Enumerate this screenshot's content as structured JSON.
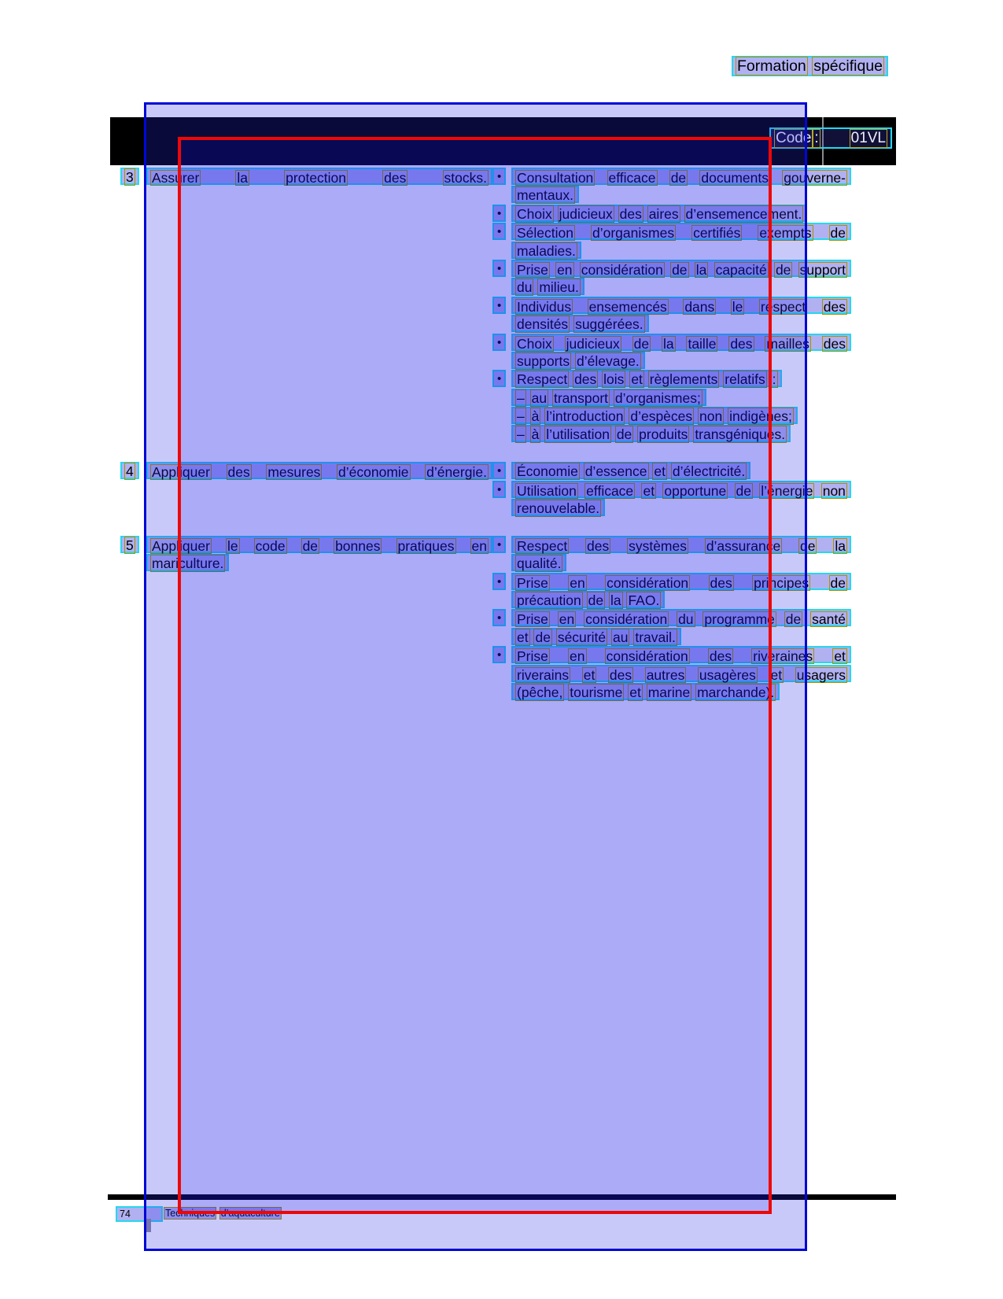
{
  "page_label": "Formation spécifique",
  "header_bar": {
    "code_label": "Code :",
    "code_value": "01VL"
  },
  "table": {
    "bullet_glyph": "•",
    "rows": [
      {
        "num": "3",
        "objective_lines": [
          "Assurer la protection des stocks."
        ],
        "bullets": [
          {
            "lines": [
              "Consultation efficace de documents gouverne-",
              "mentaux."
            ]
          },
          {
            "lines": [
              "Choix judicieux des aires d’ensemencement."
            ]
          },
          {
            "lines": [
              "Sélection d’organismes certifiés exempts de",
              "maladies."
            ]
          },
          {
            "lines": [
              "Prise en considération de la capacité de support",
              "du milieu."
            ]
          },
          {
            "lines": [
              "Individus ensemencés dans le respect des",
              "densités suggérées."
            ]
          },
          {
            "lines": [
              "Choix judicieux de la taille des mailles des",
              "supports d’élevage."
            ]
          },
          {
            "lines": [
              "Respect des lois et règlements relatifs :",
              "– au transport d’organismes;",
              "– à l’introduction d’espèces non indigènes;",
              "– à l’utilisation de produits transgéniques."
            ]
          }
        ]
      },
      {
        "num": "4",
        "objective_lines": [
          "Appliquer des mesures d’économie d’énergie."
        ],
        "bullets": [
          {
            "lines": [
              "Économie d’essence et d’électricité."
            ]
          },
          {
            "lines": [
              "Utilisation efficace et opportune de l’énergie non",
              "renouvelable."
            ]
          }
        ]
      },
      {
        "num": "5",
        "objective_lines": [
          "Appliquer le code de bonnes pratiques en",
          "mariculture."
        ],
        "bullets": [
          {
            "lines": [
              "Respect des systèmes d’assurance de la",
              "qualité."
            ]
          },
          {
            "lines": [
              "Prise en considération des principes de",
              "précaution de la FAO."
            ]
          },
          {
            "lines": [
              "Prise en considération du programme de santé",
              "et de sécurité au travail."
            ]
          },
          {
            "lines": [
              "Prise en considération des riveraines et",
              "riverains et des autres usagères et usagers",
              "(pêche, tourisme et marine marchande)."
            ]
          }
        ]
      }
    ]
  },
  "footer": {
    "page_number": "74",
    "doc_title": "Techniques d’aquaculture"
  },
  "annotation_colors": {
    "line_box": "#25d8ec",
    "word_box": "#a89200",
    "overlay_fill": "#2828e6",
    "overlay_border": "#0007d6",
    "red_box_border": "#ee0707",
    "highlight": "#4444e0",
    "bar_black": "#000000"
  }
}
